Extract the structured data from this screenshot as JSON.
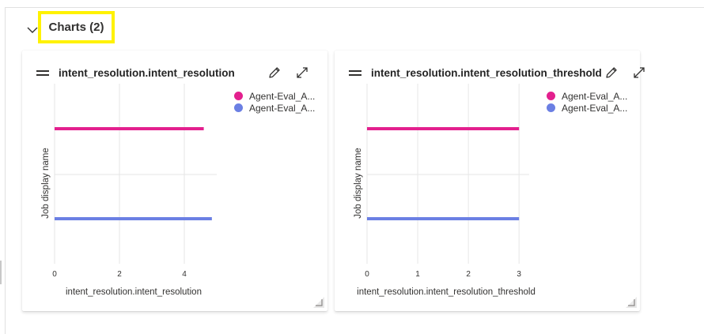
{
  "section": {
    "title": "Charts (2)"
  },
  "colors": {
    "series1": "#e3208e",
    "series2": "#6b7fe3",
    "grid": "#e6e6e6",
    "highlight": "#fff200"
  },
  "icons": {
    "collapse": "chevron-down-icon",
    "drag": "drag-handle-icon",
    "edit": "pencil-icon",
    "expand": "expand-icon",
    "resize": "resize-grip-icon"
  },
  "chart_data": [
    {
      "type": "bar",
      "orientation": "horizontal",
      "title": "intent_resolution.intent_resolution",
      "xlabel": "intent_resolution.intent_resolution",
      "ylabel": "Job display name",
      "xlim": [
        0,
        5
      ],
      "xticks": [
        "0",
        "2",
        "4"
      ],
      "series": [
        {
          "name": "Agent-Eval_A...",
          "color": "#e3208e",
          "values": [
            4.6
          ]
        },
        {
          "name": "Agent-Eval_A...",
          "color": "#6b7fe3",
          "values": [
            4.85
          ]
        }
      ]
    },
    {
      "type": "bar",
      "orientation": "horizontal",
      "title": "intent_resolution.intent_resolution_threshold",
      "xlabel": "intent_resolution.intent_resolution_threshold",
      "ylabel": "Job display name",
      "xlim": [
        0,
        3.2
      ],
      "xticks": [
        "0",
        "1",
        "2",
        "3"
      ],
      "series": [
        {
          "name": "Agent-Eval_A...",
          "color": "#e3208e",
          "values": [
            3
          ]
        },
        {
          "name": "Agent-Eval_A...",
          "color": "#6b7fe3",
          "values": [
            3
          ]
        }
      ]
    }
  ]
}
